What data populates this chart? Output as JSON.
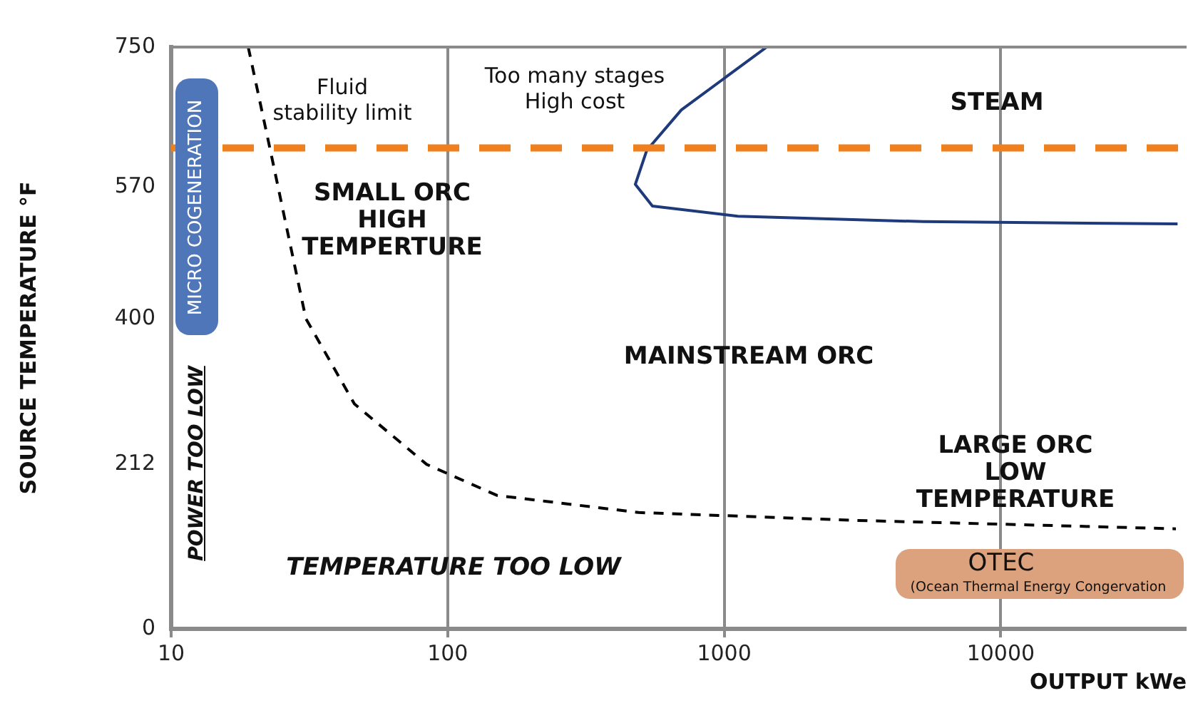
{
  "chart_data": {
    "type": "line",
    "xlabel": "OUTPUT kWe",
    "ylabel": "SOURCE TEMPERATURE °F",
    "log": "x",
    "xlim": [
      10,
      47000
    ],
    "xticks": [
      10,
      100,
      1000,
      10000
    ],
    "ylim": [
      0,
      750
    ],
    "yticks": [
      0,
      212,
      400,
      570,
      750
    ],
    "grid": "x",
    "legend": false,
    "marker": "none",
    "series": [
      {
        "type": "line",
        "color": "#000000",
        "line_style": "dashed",
        "x": [
          19,
          22.9,
          30.7,
          46,
          84,
          151,
          490,
          2880,
          43000
        ],
        "values": [
          750,
          615,
          400,
          290,
          212,
          172,
          150,
          140,
          129
        ]
      },
      {
        "type": "line",
        "color": "#1f3a7a",
        "line_style": "solid",
        "x": [
          1425,
          700,
          525,
          477,
          550,
          1120,
          5250,
          43600
        ],
        "values": [
          750,
          669,
          617,
          573,
          545,
          532,
          525,
          522
        ]
      }
    ],
    "ref_lines": [
      {
        "axis": "y",
        "value": 620,
        "color": "#f07f1e",
        "line_style": "dashed"
      }
    ],
    "annotations": [
      "Fluid\nstability limit",
      "Too many stages\nHigh cost",
      "STEAM",
      "SMALL ORC\nHIGH\nTEMPERTURE",
      "MAINSTREAM ORC",
      "LARGE ORC\nLOW\nTEMPERATURE",
      "TEMPERATURE TOO LOW",
      "POWER TOO LOW",
      "MICRO COGENERATION",
      "OTEC",
      "(Ocean Thermal Energy Congervation"
    ]
  }
}
